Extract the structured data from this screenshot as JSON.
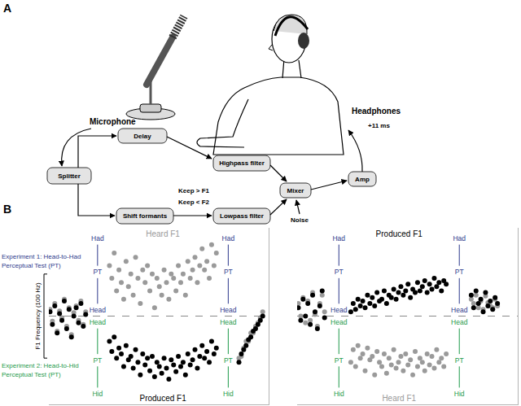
{
  "panel_a": {
    "label": "A",
    "nodes": {
      "splitter": "Splitter",
      "delay": "Delay",
      "highpass": "Highpass filter",
      "shift": "Shift formants",
      "lowpass": "Lowpass filter",
      "mixer": "Mixer",
      "amp": "Amp"
    },
    "labels": {
      "microphone": "Microphone",
      "headphones": "Headphones",
      "latency": "+11 ms",
      "keep_above": "Keep > F1",
      "keep_below": "Keep < F2",
      "noise": "Noise"
    }
  },
  "panel_b": {
    "label": "B",
    "scale_bar": {
      "label": "F1 Frequency (100 Hz)",
      "from": -50,
      "to": 50
    },
    "experiments": [
      {
        "label_lines": [
          "Experiment 1: Head-to-Had",
          "Perceptual Test (PT)"
        ],
        "color": "#2e3a8c",
        "column_labels": [
          "Had",
          "PT",
          "Head"
        ]
      },
      {
        "label_lines": [
          "Experiment 2: Head-to-Hid",
          "Perceptual Test (PT)"
        ],
        "color": "#1e9a4b",
        "column_labels": [
          "Head",
          "PT",
          "Hid"
        ]
      }
    ]
  },
  "chart_data": [
    {
      "type": "scatter",
      "marker": "circle",
      "grid": false,
      "tick_labels": false,
      "xlim": [
        0,
        185
      ],
      "ylim": [
        -105,
        105
      ],
      "baseline": 0,
      "pt_columns": [
        41,
        151
      ],
      "annotations": [
        {
          "text": "Heard F1",
          "color": "#9a9a9a",
          "position": "top"
        },
        {
          "text": "Produced F1",
          "color": "#000000",
          "position": "bottom"
        }
      ],
      "series": [
        {
          "name": "Heard F1",
          "color": "#9a9a9a",
          "x": [
            1,
            3,
            5,
            7,
            9,
            11,
            13,
            15,
            17,
            19,
            21,
            23,
            25,
            27,
            29,
            31,
            51,
            53,
            55,
            57,
            59,
            61,
            63,
            65,
            67,
            69,
            71,
            73,
            75,
            77,
            79,
            81,
            83,
            85,
            87,
            89,
            91,
            93,
            95,
            97,
            99,
            101,
            103,
            105,
            107,
            109,
            111,
            113,
            115,
            117,
            119,
            121,
            123,
            125,
            127,
            129,
            131,
            133,
            135,
            137,
            139,
            141,
            160,
            162,
            164,
            166,
            168,
            170,
            172,
            174,
            176,
            178,
            180
          ],
          "values": [
            8,
            -6,
            15,
            -18,
            6,
            -2,
            20,
            -12,
            10,
            -22,
            4,
            12,
            -5,
            18,
            -10,
            5,
            60,
            45,
            75,
            30,
            55,
            40,
            20,
            65,
            35,
            50,
            25,
            70,
            45,
            15,
            55,
            40,
            60,
            30,
            50,
            10,
            45,
            35,
            25,
            55,
            40,
            20,
            50,
            45,
            30,
            60,
            40,
            50,
            25,
            65,
            45,
            55,
            70,
            40,
            60,
            80,
            55,
            65,
            45,
            85,
            60,
            75,
            -50,
            -48,
            -38,
            -30,
            -30,
            -20,
            -20,
            -12,
            -8,
            -2,
            5
          ]
        },
        {
          "name": "Produced F1",
          "color": "#000000",
          "x": [
            1,
            3,
            5,
            7,
            9,
            11,
            13,
            15,
            17,
            19,
            21,
            23,
            25,
            27,
            29,
            31,
            51,
            53,
            55,
            57,
            59,
            61,
            63,
            65,
            67,
            69,
            71,
            73,
            75,
            77,
            79,
            81,
            83,
            85,
            87,
            89,
            91,
            93,
            95,
            97,
            99,
            101,
            103,
            105,
            107,
            109,
            111,
            113,
            115,
            117,
            119,
            121,
            123,
            125,
            127,
            129,
            131,
            133,
            135,
            137,
            139,
            141,
            160,
            162,
            164,
            166,
            168,
            170,
            172,
            174,
            176,
            178,
            180
          ],
          "values": [
            5,
            -10,
            12,
            -20,
            3,
            -5,
            18,
            -15,
            8,
            -25,
            0,
            10,
            -8,
            15,
            -12,
            2,
            -30,
            -42,
            -25,
            -50,
            -38,
            -45,
            -60,
            -35,
            -52,
            -48,
            -62,
            -40,
            -55,
            -70,
            -45,
            -58,
            -50,
            -65,
            -48,
            -72,
            -55,
            -60,
            -68,
            -50,
            -62,
            -75,
            -52,
            -58,
            -66,
            -48,
            -60,
            -55,
            -70,
            -45,
            -58,
            -52,
            -40,
            -62,
            -48,
            -35,
            -50,
            -42,
            -55,
            -30,
            -45,
            -38,
            -55,
            -45,
            -40,
            -35,
            -28,
            -25,
            -18,
            -15,
            -10,
            -5,
            0
          ]
        }
      ]
    },
    {
      "type": "scatter",
      "marker": "circle",
      "grid": false,
      "tick_labels": false,
      "xlim": [
        0,
        185
      ],
      "ylim": [
        -105,
        105
      ],
      "baseline": 0,
      "pt_columns": [
        35,
        136
      ],
      "annotations": [
        {
          "text": "Produced F1",
          "color": "#000000",
          "position": "top"
        },
        {
          "text": "Heard F1",
          "color": "#9a9a9a",
          "position": "bottom"
        }
      ],
      "series": [
        {
          "name": "Heard F1",
          "color": "#9a9a9a",
          "x": [
            1,
            3,
            5,
            7,
            9,
            11,
            13,
            15,
            17,
            19,
            21,
            23,
            45,
            47,
            49,
            51,
            53,
            55,
            57,
            59,
            61,
            63,
            65,
            67,
            69,
            71,
            73,
            75,
            77,
            79,
            81,
            83,
            85,
            87,
            89,
            91,
            93,
            95,
            97,
            99,
            101,
            103,
            105,
            107,
            109,
            111,
            113,
            115,
            117,
            119,
            121,
            123,
            125,
            146,
            148,
            150,
            152,
            154,
            156,
            158,
            160,
            162,
            164,
            166,
            168
          ],
          "values": [
            15,
            0,
            22,
            -8,
            18,
            -5,
            28,
            2,
            -12,
            15,
            25,
            5,
            -55,
            -40,
            -60,
            -35,
            -50,
            -45,
            -65,
            -38,
            -52,
            -48,
            -70,
            -42,
            -55,
            -60,
            -45,
            -68,
            -50,
            -58,
            -40,
            -62,
            -55,
            -48,
            -65,
            -45,
            -58,
            -52,
            -70,
            -42,
            -60,
            -50,
            -55,
            -65,
            -45,
            -58,
            -48,
            -62,
            -40,
            -55,
            -50,
            -60,
            -45,
            20,
            15,
            25,
            10,
            18,
            8,
            24,
            16,
            12,
            10,
            20,
            12
          ]
        },
        {
          "name": "Produced F1",
          "color": "#000000",
          "x": [
            1,
            3,
            5,
            7,
            9,
            11,
            13,
            15,
            17,
            19,
            21,
            23,
            45,
            47,
            49,
            51,
            53,
            55,
            57,
            59,
            61,
            63,
            65,
            67,
            69,
            71,
            73,
            75,
            77,
            79,
            81,
            83,
            85,
            87,
            89,
            91,
            93,
            95,
            97,
            99,
            101,
            103,
            105,
            107,
            109,
            111,
            113,
            115,
            117,
            119,
            121,
            123,
            125,
            146,
            148,
            150,
            152,
            154,
            156,
            158,
            160,
            162,
            164,
            166,
            168
          ],
          "values": [
            10,
            -5,
            20,
            0,
            15,
            -10,
            25,
            5,
            -15,
            12,
            30,
            -2,
            5,
            15,
            8,
            20,
            12,
            18,
            10,
            25,
            15,
            22,
            12,
            28,
            18,
            20,
            30,
            15,
            25,
            22,
            32,
            20,
            28,
            35,
            25,
            30,
            38,
            22,
            32,
            28,
            40,
            30,
            35,
            42,
            28,
            38,
            32,
            45,
            35,
            40,
            30,
            42,
            38,
            25,
            10,
            30,
            15,
            20,
            5,
            28,
            12,
            18,
            8,
            22,
            15
          ]
        }
      ]
    }
  ]
}
